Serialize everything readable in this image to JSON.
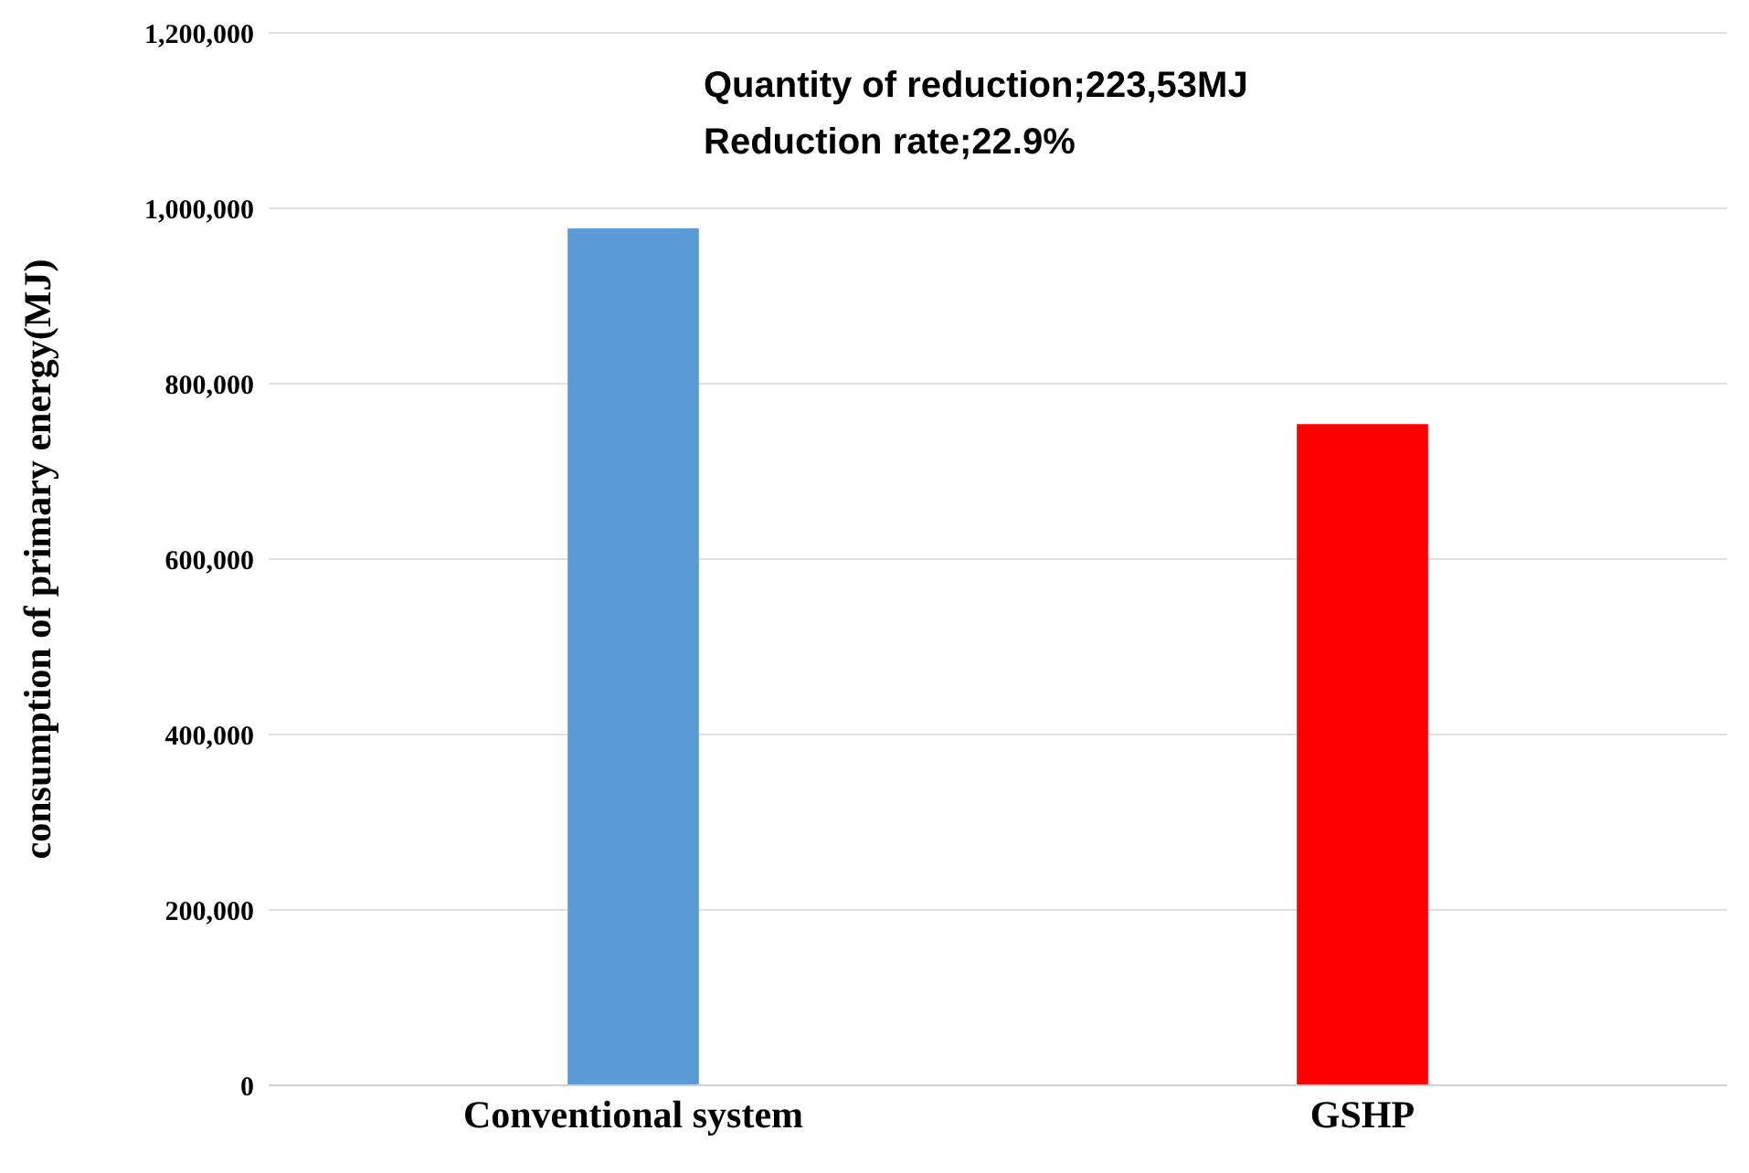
{
  "chart_data": {
    "type": "bar",
    "ylabel": "consumption of primary energy(MJ)",
    "categories": [
      "Conventional system",
      "GSHP"
    ],
    "values": [
      977000,
      754000
    ],
    "colors": [
      "#5b9bd5",
      "#ff0000"
    ],
    "ylim": [
      0,
      1200000
    ],
    "yticks": [
      {
        "value": 0,
        "label": "0"
      },
      {
        "value": 200000,
        "label": "200,000"
      },
      {
        "value": 400000,
        "label": "400,000"
      },
      {
        "value": 600000,
        "label": "600,000"
      },
      {
        "value": 800000,
        "label": "800,000"
      },
      {
        "value": 1000000,
        "label": "1,000,000"
      },
      {
        "value": 1200000,
        "label": "1,200,000"
      }
    ],
    "grid": "y",
    "legend": false,
    "annotations": [
      "Quantity of reduction;223,53MJ",
      "Reduction rate;22.9%"
    ]
  }
}
